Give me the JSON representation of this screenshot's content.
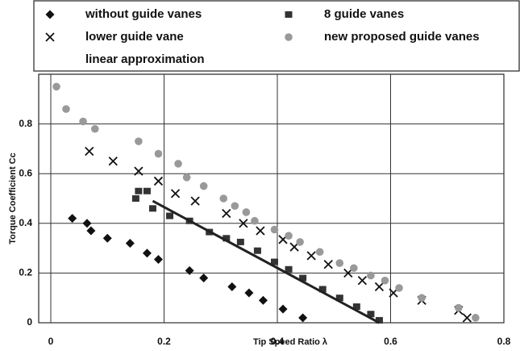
{
  "chart_data": {
    "type": "scatter",
    "x_label": "Tip Speed Ratio λ",
    "y_label": "Torque Coefficient Cc",
    "xlim": [
      0,
      0.8
    ],
    "ylim": [
      0,
      1
    ],
    "xticks": [
      0,
      0.2,
      0.4,
      0.6,
      0.8
    ],
    "yticks": [
      0,
      0.2,
      0.4,
      0.6,
      0.8
    ],
    "grid": true,
    "series": [
      {
        "name": "without guide vanes",
        "marker": "diamond",
        "color": "#111111",
        "x": [
          0.038,
          0.064,
          0.071,
          0.1,
          0.14,
          0.17,
          0.19,
          0.245,
          0.27,
          0.32,
          0.35,
          0.375,
          0.41,
          0.445
        ],
        "values": [
          0.42,
          0.4,
          0.37,
          0.34,
          0.32,
          0.28,
          0.255,
          0.21,
          0.18,
          0.145,
          0.12,
          0.09,
          0.055,
          0.02
        ]
      },
      {
        "name": "8 guide vanes",
        "marker": "square",
        "color": "#333333",
        "x": [
          0.15,
          0.155,
          0.17,
          0.18,
          0.21,
          0.245,
          0.28,
          0.31,
          0.335,
          0.365,
          0.395,
          0.42,
          0.445,
          0.48,
          0.51,
          0.54,
          0.565,
          0.58
        ],
        "values": [
          0.5,
          0.53,
          0.53,
          0.46,
          0.43,
          0.41,
          0.365,
          0.34,
          0.325,
          0.29,
          0.245,
          0.215,
          0.18,
          0.135,
          0.1,
          0.065,
          0.035,
          0.01
        ]
      },
      {
        "name": "lower guide vane",
        "marker": "cross",
        "color": "#111111",
        "x": [
          0.068,
          0.11,
          0.155,
          0.19,
          0.22,
          0.255,
          0.31,
          0.34,
          0.37,
          0.41,
          0.43,
          0.46,
          0.49,
          0.525,
          0.55,
          0.58,
          0.605,
          0.655,
          0.72,
          0.735
        ],
        "values": [
          0.69,
          0.65,
          0.61,
          0.57,
          0.52,
          0.49,
          0.44,
          0.4,
          0.37,
          0.335,
          0.305,
          0.27,
          0.235,
          0.2,
          0.17,
          0.145,
          0.12,
          0.09,
          0.05,
          0.02
        ]
      },
      {
        "name": "new proposed guide vanes",
        "marker": "circle",
        "color": "#999999",
        "x": [
          0.01,
          0.027,
          0.057,
          0.078,
          0.155,
          0.19,
          0.225,
          0.24,
          0.27,
          0.305,
          0.325,
          0.345,
          0.36,
          0.395,
          0.42,
          0.44,
          0.475,
          0.51,
          0.535,
          0.565,
          0.59,
          0.615,
          0.655,
          0.72,
          0.75
        ],
        "values": [
          0.95,
          0.86,
          0.81,
          0.78,
          0.73,
          0.68,
          0.64,
          0.585,
          0.55,
          0.5,
          0.47,
          0.445,
          0.41,
          0.375,
          0.35,
          0.325,
          0.285,
          0.24,
          0.22,
          0.19,
          0.17,
          0.14,
          0.1,
          0.06,
          0.02
        ]
      },
      {
        "name": "linear approximation",
        "marker": "line",
        "color": "#222222",
        "x": [
          0.18,
          0.58
        ],
        "values": [
          0.49,
          0
        ]
      }
    ]
  }
}
